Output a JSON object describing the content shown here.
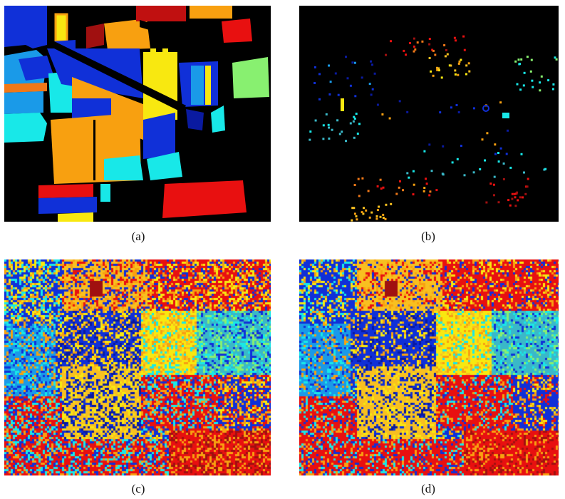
{
  "captions": {
    "a": "(a)",
    "b": "(b)",
    "c": "(c)",
    "d": "(d)"
  },
  "palette": {
    "background": "#000000",
    "blue": "#1030d8",
    "navy": "#0a1aa0",
    "sky": "#1a9ae8",
    "cyan": "#18e8e8",
    "teal": "#3ab8c8",
    "green": "#88f070",
    "yellow": "#f8e810",
    "gold": "#f8c020",
    "orange": "#f8a010",
    "darkorange": "#f07818",
    "red": "#e81010",
    "darkred": "#a01010"
  }
}
